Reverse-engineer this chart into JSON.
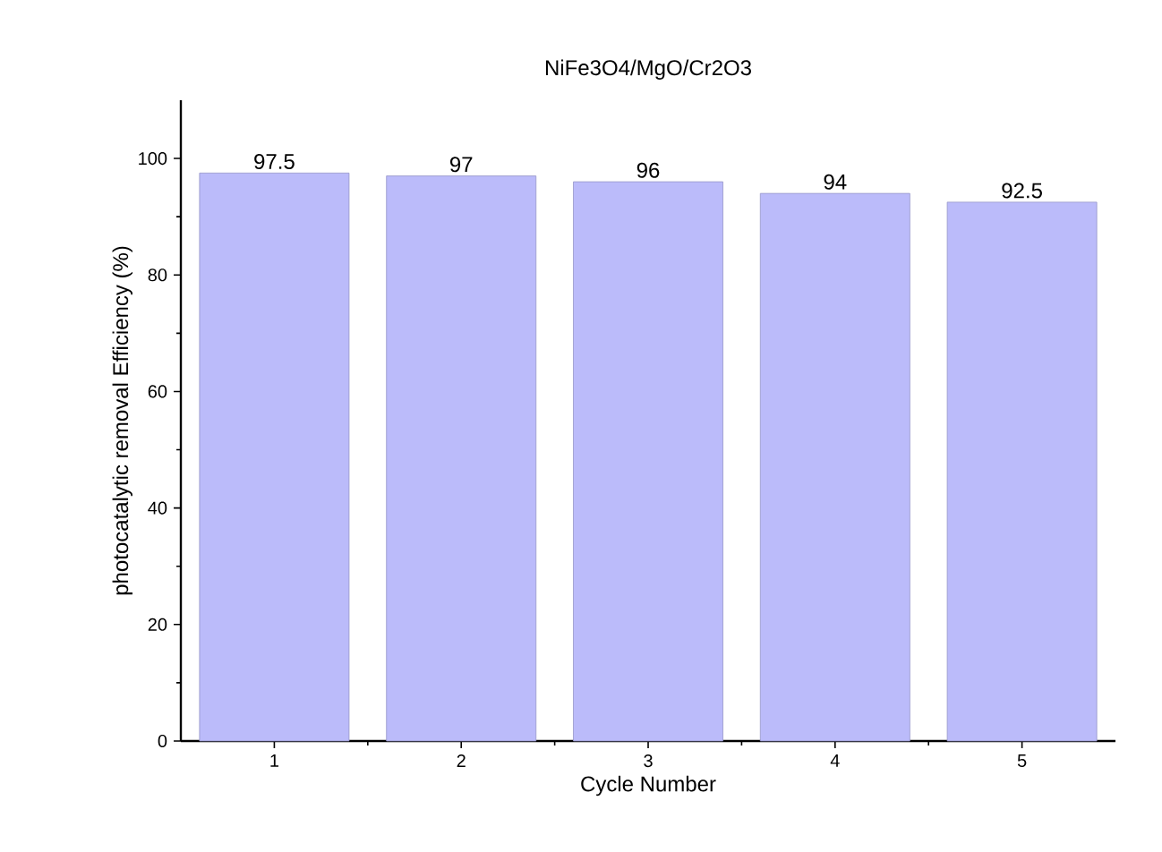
{
  "chart_data": {
    "type": "bar",
    "title": "NiFe3O4/MgO/Cr2O3",
    "xlabel": "Cycle Number",
    "ylabel": "photocatalytic removal Efficiency (%)",
    "categories": [
      "1",
      "2",
      "3",
      "4",
      "5"
    ],
    "values": [
      97.5,
      97,
      96,
      94,
      92.5
    ],
    "color": "#bbbbfa",
    "data_labels": true,
    "ylim": [
      0,
      110
    ],
    "yticks": [
      0,
      20,
      40,
      60,
      80,
      100
    ],
    "grid": false
  }
}
